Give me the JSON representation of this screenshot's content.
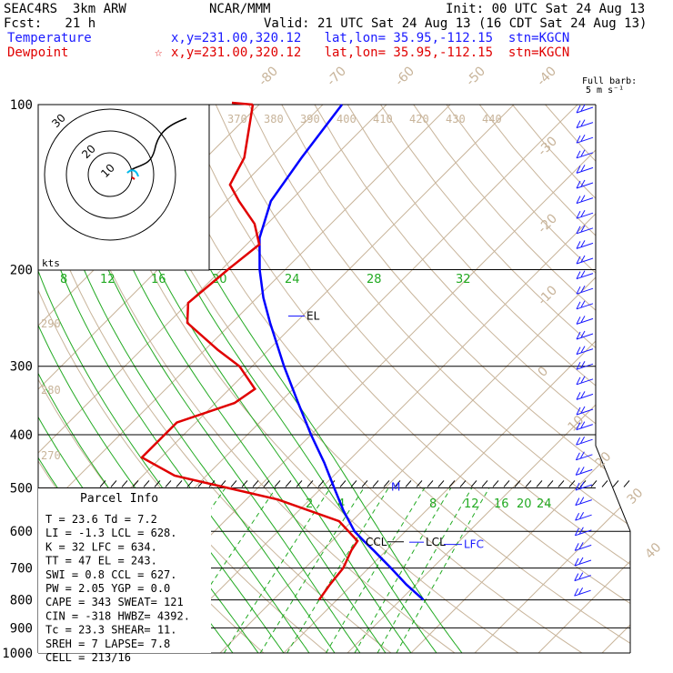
{
  "header": {
    "experiment": "SEAC4RS  3km ARW",
    "org": "NCAR/MMM",
    "init": "Init: 00 UTC Sat 24 Aug 13",
    "fcst": "Fcst:   21 h",
    "valid": "Valid: 21 UTC Sat 24 Aug 13 (16 CDT Sat 24 Aug 13)",
    "temp_label": "Temperature",
    "temp_info": "x,y=231.00,320.12   lat,lon= 35.95,-112.15  stn=KGCN",
    "dew_label": "Dewpoint",
    "dew_marker": "☆",
    "dew_info": "x,y=231.00,320.12   lat,lon= 35.95,-112.15  stn=KGCN",
    "barb_note_1": "Full barb:",
    "barb_note_2": "5 m s⁻¹"
  },
  "parcel": {
    "title": "Parcel Info",
    "rows": [
      "T   =    23.6  Td =    7.2",
      "LI  =    -1.3  LCL =  628.",
      "K   =      32  LFC =  634.",
      "TT  =      47  EL  =  243.",
      "SWI =     0.8  CCL =  627.",
      "PW  =    2.05  YGP =   0.0",
      "CAPE =    343  SWEAT=   121",
      "CIN  =   -318  HWBZ= 4392.",
      "Tc  =    23.3  SHEAR=   11.",
      "SREH =      7  LAPSE=   7.8",
      "CELL = 213/16"
    ]
  },
  "chart_data": {
    "type": "skew-t",
    "pressure_levels": [
      100,
      200,
      300,
      400,
      500,
      600,
      700,
      800,
      900,
      1000
    ],
    "isotherm_labels": [
      -80,
      -70,
      -60,
      -50,
      -40,
      -30,
      -20,
      -10,
      0,
      10,
      20,
      30,
      40
    ],
    "theta_labels": [
      270,
      280,
      290,
      370,
      380,
      390,
      400,
      410,
      420,
      430,
      440
    ],
    "mixing_ratio_labels_upper": [
      8,
      12,
      16,
      20,
      24,
      28,
      32
    ],
    "mixing_ratio_labels_lower": [
      2,
      4,
      8,
      12,
      16,
      20,
      24
    ],
    "temperature": {
      "name": "Temperature",
      "color": "#0000ff",
      "p": [
        800,
        750,
        700,
        650,
        625,
        600,
        550,
        500,
        450,
        400,
        350,
        300,
        250,
        225,
        200,
        175,
        150,
        125,
        100
      ],
      "t": [
        23.6,
        18.5,
        13.5,
        8,
        5,
        2,
        -3,
        -8,
        -13.5,
        -20,
        -27,
        -35,
        -44,
        -49,
        -54,
        -59,
        -63,
        -65,
        -67
      ]
    },
    "dewpoint": {
      "name": "Dewpoint",
      "color": "#e00000",
      "p": [
        800,
        750,
        700,
        650,
        625,
        575,
        525,
        475,
        440,
        380,
        350,
        330,
        300,
        280,
        250,
        230,
        200,
        180,
        165,
        150,
        140,
        125,
        110,
        100
      ],
      "td": [
        7.2,
        6.5,
        6,
        4.5,
        4,
        -2,
        -15,
        -35,
        -43,
        -43,
        -37,
        -36,
        -42,
        -48,
        -57,
        -60,
        -59,
        -58,
        -62,
        -68,
        -72,
        -74,
        -78,
        -81
      ]
    },
    "annotations": [
      {
        "text": "EL",
        "p": 243
      },
      {
        "text": "M",
        "p": 500
      },
      {
        "text": "CCL",
        "p": 627
      },
      {
        "text": "LCL",
        "p": 628
      },
      {
        "text": "LFC",
        "p": 634
      }
    ],
    "hodograph": {
      "units_label": "kts",
      "ring_labels": [
        "10",
        "20",
        "30"
      ],
      "color": "#000000"
    },
    "wind_barb_count": 33
  }
}
